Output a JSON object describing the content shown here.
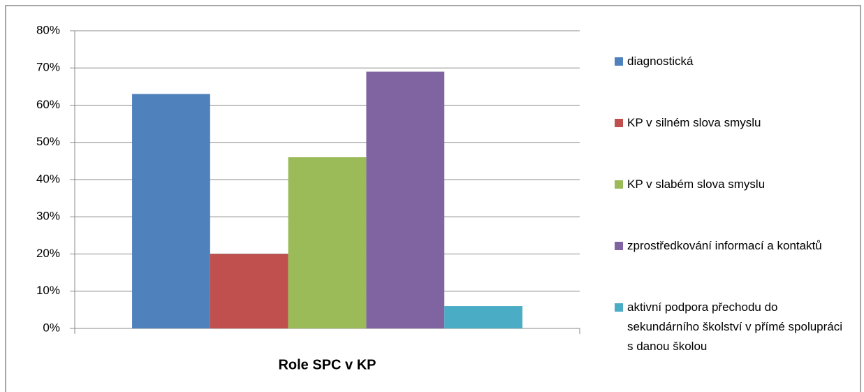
{
  "chart_data": {
    "type": "bar",
    "categories": [
      "Role SPC v KP"
    ],
    "series": [
      {
        "name": "diagnostická",
        "color": "#4f81bd",
        "values": [
          63
        ]
      },
      {
        "name": "KP v silném slova smyslu",
        "color": "#c0504d",
        "values": [
          20
        ]
      },
      {
        "name": "KP v slabém slova smyslu",
        "color": "#9bbb59",
        "values": [
          46
        ]
      },
      {
        "name": "zprostředkování informací a kontaktů",
        "color": "#8064a2",
        "values": [
          69
        ]
      },
      {
        "name": "aktivní podpora přechodu do sekundárního školství v přímé spolupráci s danou školou",
        "color": "#4bacc6",
        "values": [
          6
        ]
      }
    ],
    "ylim": [
      0,
      80
    ],
    "yticks": [
      {
        "value": 0,
        "label": "0%"
      },
      {
        "value": 10,
        "label": "10%"
      },
      {
        "value": 20,
        "label": "20%"
      },
      {
        "value": 30,
        "label": "30%"
      },
      {
        "value": 40,
        "label": "40%"
      },
      {
        "value": 50,
        "label": "50%"
      },
      {
        "value": 60,
        "label": "60%"
      },
      {
        "value": 70,
        "label": "70%"
      },
      {
        "value": 80,
        "label": "80%"
      }
    ],
    "grid": true,
    "legend": "right"
  }
}
